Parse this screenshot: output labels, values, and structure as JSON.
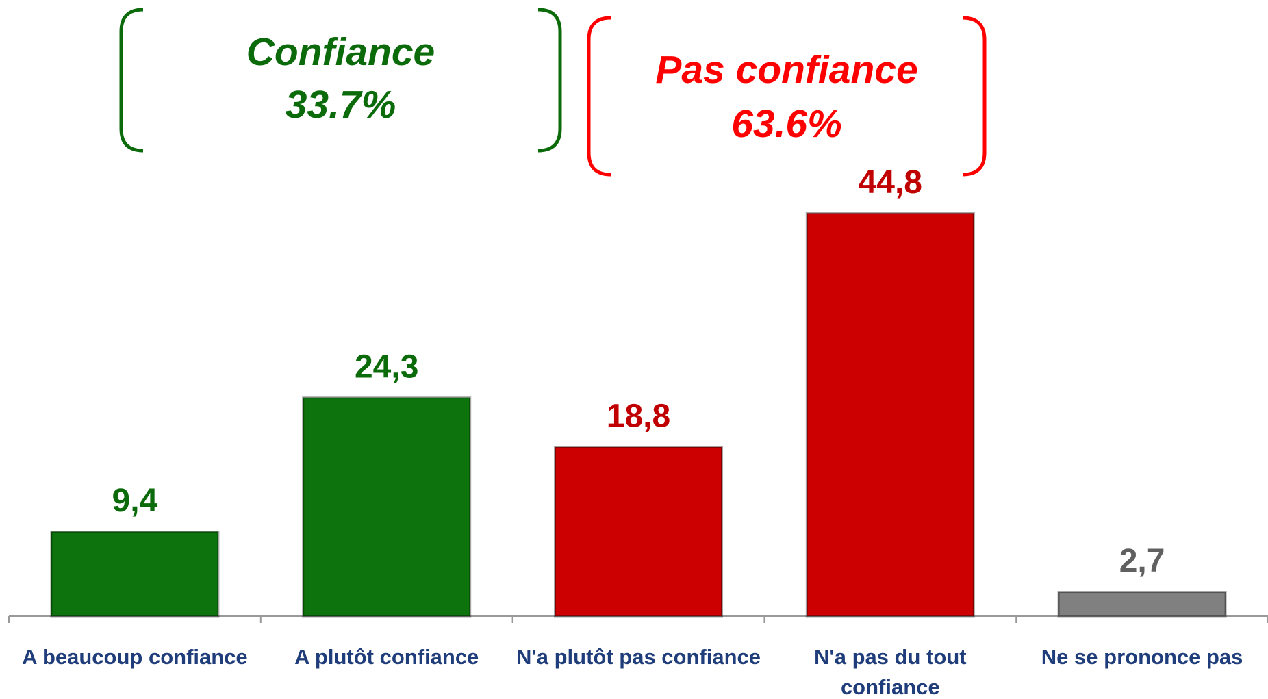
{
  "chart_data": {
    "type": "bar",
    "categories": [
      "A beaucoup confiance",
      "A plutôt confiance",
      "N'a plutôt pas confiance",
      "N'a pas du tout confiance",
      "Ne se prononce pas"
    ],
    "values": [
      9.4,
      24.3,
      18.8,
      44.8,
      2.7
    ],
    "value_labels": [
      "9,4",
      "24,3",
      "18,8",
      "44,8",
      "2,7"
    ],
    "colors": [
      "#0d740d",
      "#0d740d",
      "#cc0000",
      "#cc0000",
      "#808080"
    ],
    "label_colors": [
      "#0b6b0b",
      "#0b6b0b",
      "#c00000",
      "#c00000",
      "#606060"
    ],
    "ylim": [
      0,
      50
    ],
    "annotations": [
      {
        "title": "Confiance",
        "value": "33.7%",
        "color": "#0b6b0b"
      },
      {
        "title": "Pas confiance",
        "value": "63.6%",
        "color": "#ff0000"
      }
    ]
  }
}
